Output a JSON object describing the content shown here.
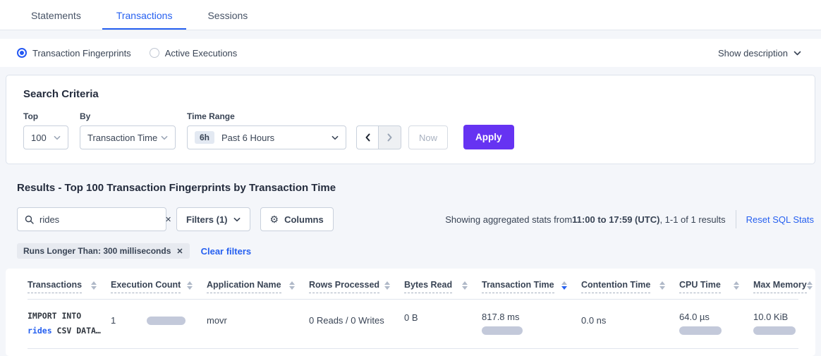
{
  "accent": {
    "blue": "#2660f0",
    "purple": "#6633f2",
    "bar_color": "#c3c9da"
  },
  "tabs": [
    {
      "label": "Statements",
      "active": false
    },
    {
      "label": "Transactions",
      "active": true
    },
    {
      "label": "Sessions",
      "active": false
    }
  ],
  "view_toggle": {
    "fingerprints_label": "Transaction Fingerprints",
    "active_executions_label": "Active Executions",
    "selected": "Transaction Fingerprints"
  },
  "show_description_label": "Show description",
  "search_criteria": {
    "title": "Search Criteria",
    "top": {
      "label": "Top",
      "value": "100"
    },
    "by": {
      "label": "By",
      "value": "Transaction Time"
    },
    "time_range": {
      "label": "Time Range",
      "badge": "6h",
      "value": "Past 6 Hours"
    },
    "now_label": "Now",
    "apply_label": "Apply"
  },
  "results": {
    "title": "Results - Top 100 Transaction Fingerprints by Transaction Time",
    "search": {
      "value": "rides",
      "placeholder": ""
    },
    "filters_label": "Filters (1)",
    "columns_label": "Columns",
    "stats_prefix": "Showing aggregated stats from ",
    "stats_range": "11:00 to 17:59 (UTC)",
    "stats_suffix": ", 1-1 of 1 results",
    "reset_label": "Reset SQL Stats",
    "filter_chip": "Runs Longer Than: 300 milliseconds",
    "clear_filters_label": "Clear filters"
  },
  "icons": {
    "search": "magnifier-icon",
    "columns": "gear-icon",
    "chevron": "chevron-down-icon",
    "prev": "chevron-left-icon",
    "next": "chevron-right-icon"
  },
  "table": {
    "columns": [
      {
        "label": "Transactions",
        "sort": "none"
      },
      {
        "label": "Execution Count",
        "sort": "none"
      },
      {
        "label": "Application Name",
        "sort": "none"
      },
      {
        "label": "Rows Processed",
        "sort": "none"
      },
      {
        "label": "Bytes Read",
        "sort": "none"
      },
      {
        "label": "Transaction Time",
        "sort": "desc"
      },
      {
        "label": "Contention Time",
        "sort": "none"
      },
      {
        "label": "CPU Time",
        "sort": "none"
      },
      {
        "label": "Max Memory",
        "sort": "none"
      }
    ],
    "rows": [
      {
        "transaction_line1": "IMPORT INTO",
        "transaction_highlight": "rides",
        "transaction_rest": " CSV DATA…",
        "execution_count": "1",
        "application_name": "movr",
        "rows_processed": "0 Reads / 0 Writes",
        "bytes_read": "0 B",
        "transaction_time": "817.8 ms",
        "contention_time": "0.0 ns",
        "cpu_time": "64.0 µs",
        "max_memory": "10.0 KiB"
      }
    ]
  }
}
